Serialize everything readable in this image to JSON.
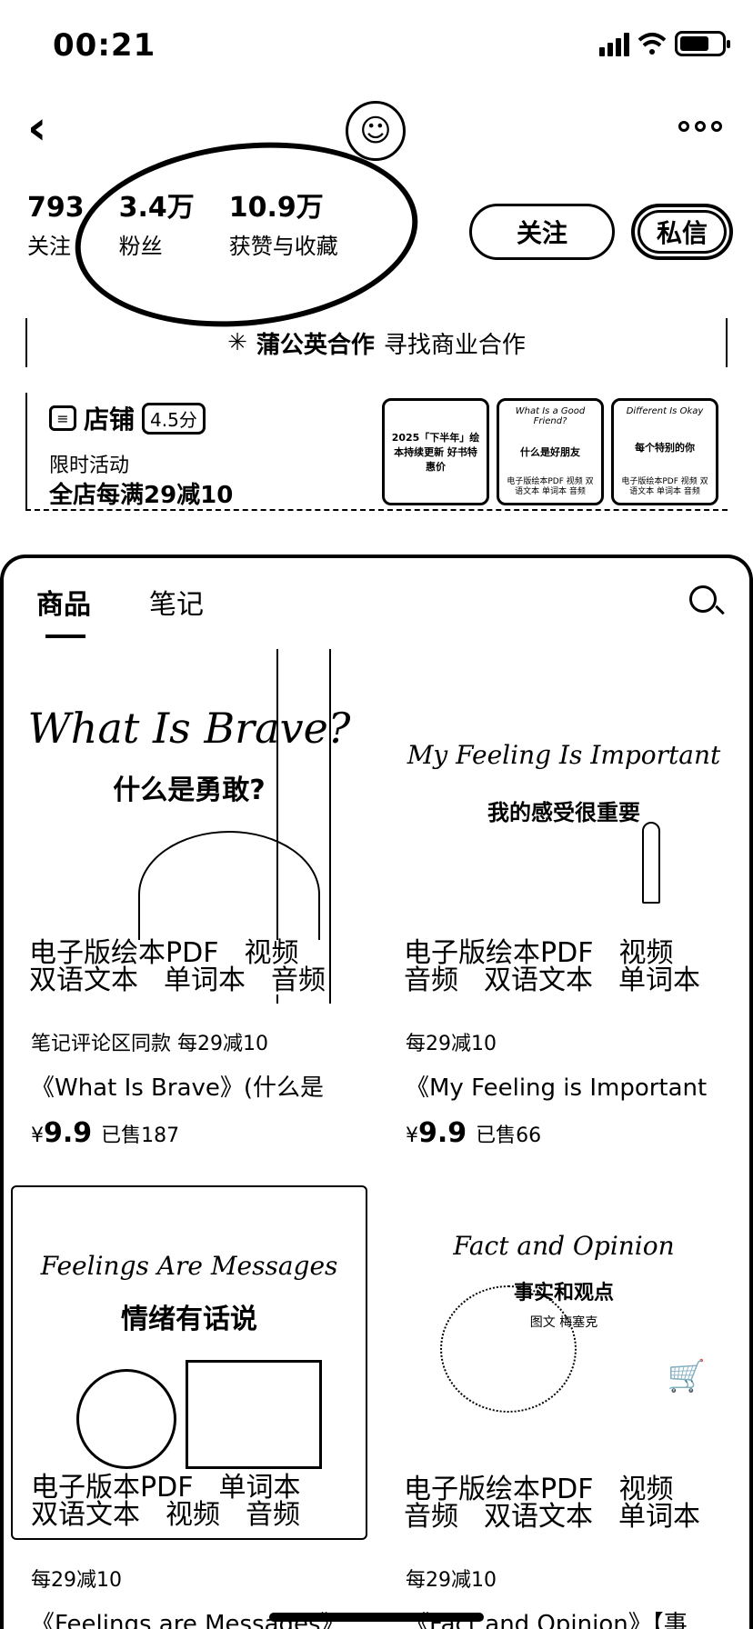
{
  "status": {
    "time": "00:21"
  },
  "profile": {
    "stats": [
      {
        "value": "793",
        "label": "关注"
      },
      {
        "value": "3.4万",
        "label": "粉丝"
      },
      {
        "value": "10.9万",
        "label": "获赞与收藏"
      }
    ],
    "follow_label": "关注",
    "message_label": "私信",
    "biz_brand": "蒲公英合作",
    "biz_cta": "寻找商业合作"
  },
  "store": {
    "title": "店铺",
    "score": "4.5分",
    "promo_label": "限时活动",
    "deal": "全店每满29减10",
    "thumbs": [
      {
        "top": "",
        "mid": "2025「下半年」绘本持续更新 好书特惠价",
        "foot": ""
      },
      {
        "top": "What Is a Good Friend?",
        "mid": "什么是好朋友",
        "foot": "电子版绘本PDF 视频 双语文本 单词本 音频"
      },
      {
        "top": "Different Is Okay",
        "mid": "每个特别的你",
        "foot": "电子版绘本PDF 视频 双语文本 单词本 音频"
      }
    ]
  },
  "tabs": {
    "products": "商品",
    "notes": "笔记"
  },
  "products": [
    {
      "cover_title": "What Is Brave?",
      "cover_sub": "什么是勇敢?",
      "tags_line1": [
        "电子版绘本PDF",
        "视频"
      ],
      "tags_line2": [
        "双语文本",
        "单词本",
        "音频"
      ],
      "subtag": "笔记评论区同款  每29减10",
      "title": "《What Is Brave》(什么是",
      "currency": "¥",
      "price": "9.9",
      "sold": "已售187"
    },
    {
      "cover_title": "My Feeling Is Important",
      "cover_sub": "我的感受很重要",
      "tags_line1": [
        "电子版绘本PDF",
        "视频"
      ],
      "tags_line2": [
        "音频",
        "双语文本",
        "单词本"
      ],
      "subtag": "每29减10",
      "title": "《My Feeling is Important",
      "currency": "¥",
      "price": "9.9",
      "sold": "已售66"
    },
    {
      "cover_title": "Feelings Are Messages",
      "cover_sub": "情绪有话说",
      "tags_line1": [
        "电子版本PDF",
        "单词本"
      ],
      "tags_line2": [
        "双语文本",
        "视频",
        "音频"
      ],
      "subtag": "每29减10",
      "title": "《Feelings are Messages》",
      "currency": "",
      "price": "",
      "sold": ""
    },
    {
      "cover_title": "Fact and Opinion",
      "cover_sub": "事实和观点",
      "cover_author": "图文 梅塞克",
      "tags_line1": [
        "电子版绘本PDF",
        "视频"
      ],
      "tags_line2": [
        "音频",
        "双语文本",
        "单词本"
      ],
      "subtag": "每29减10",
      "title": "《Fact and Opinion》【事",
      "currency": "",
      "price": "",
      "sold": ""
    }
  ]
}
